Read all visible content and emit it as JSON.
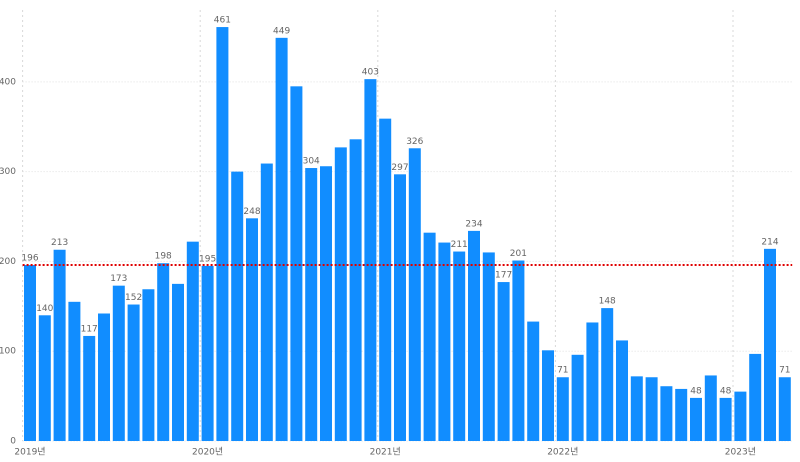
{
  "chart_data": {
    "type": "bar",
    "categories": [
      "2019년",
      null,
      null,
      null,
      null,
      null,
      null,
      null,
      null,
      null,
      null,
      null,
      "2020년",
      null,
      null,
      null,
      null,
      null,
      null,
      null,
      null,
      null,
      null,
      null,
      "2021년",
      null,
      null,
      null,
      null,
      null,
      null,
      null,
      null,
      null,
      null,
      null,
      "2022년",
      null,
      null,
      null,
      null,
      null,
      null,
      null,
      null,
      null,
      null,
      null,
      "2023년",
      null,
      null,
      null
    ],
    "values": [
      196,
      140,
      213,
      155,
      117,
      142,
      173,
      152,
      169,
      198,
      175,
      222,
      195,
      461,
      300,
      248,
      309,
      449,
      395,
      304,
      306,
      327,
      336,
      403,
      359,
      297,
      326,
      232,
      221,
      211,
      234,
      210,
      177,
      201,
      133,
      101,
      71,
      96,
      132,
      148,
      112,
      72,
      71,
      61,
      58,
      48,
      73,
      48,
      55,
      97,
      214,
      71
    ],
    "value_labels": [
      "196",
      "140",
      "213",
      null,
      "117",
      null,
      "173",
      "152",
      null,
      "198",
      null,
      null,
      "195",
      "461",
      null,
      "248",
      null,
      "449",
      null,
      "304",
      null,
      null,
      null,
      "403",
      null,
      "297",
      "326",
      null,
      null,
      "211",
      "234",
      null,
      "177",
      "201",
      null,
      null,
      "71",
      null,
      null,
      "148",
      null,
      null,
      null,
      null,
      null,
      "48",
      null,
      "48",
      null,
      null,
      "214",
      "71"
    ],
    "color": "#118dff",
    "ylim": [
      0,
      480
    ],
    "yticks": [
      0,
      100,
      200,
      300,
      400
    ],
    "grid": true,
    "reference_line": {
      "value": 196,
      "color": "#e00000"
    }
  }
}
